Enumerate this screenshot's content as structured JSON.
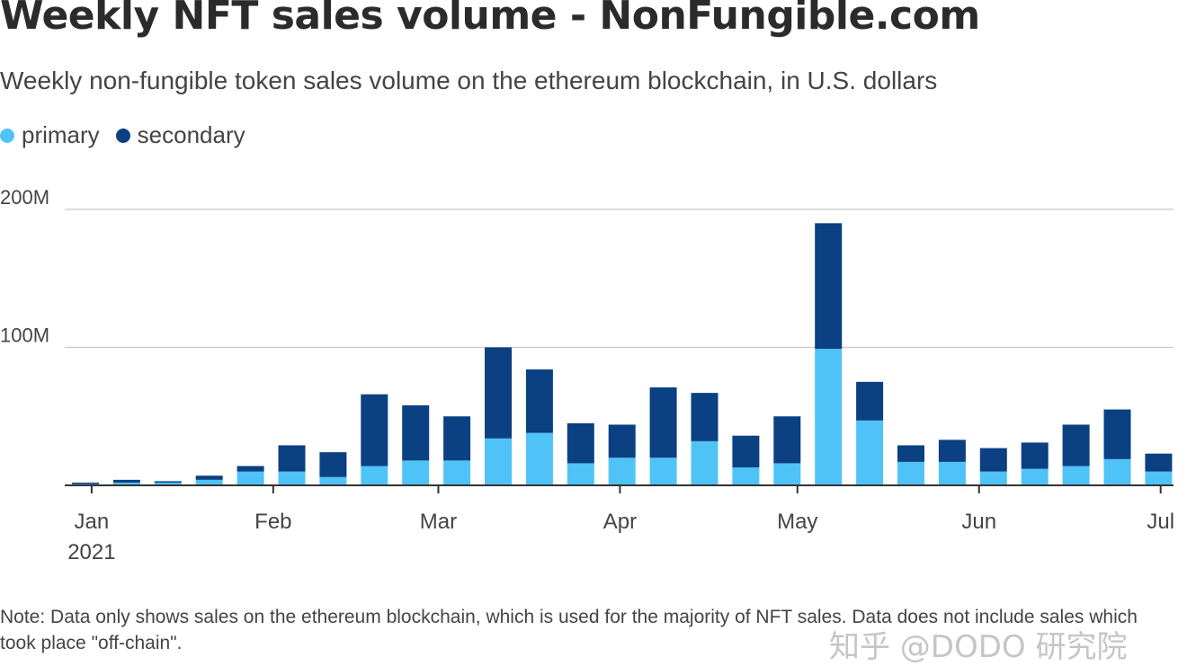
{
  "chart_data": {
    "type": "bar",
    "stacked": true,
    "title": "Weekly NFT sales volume - NonFungible.com",
    "subtitle": "Weekly non-fungible token sales volume on the ethereum blockchain, in U.S. dollars",
    "legend_placement": "top-left",
    "grid": true,
    "ylim": [
      0,
      200
    ],
    "y_ticks": [
      {
        "value": 100,
        "label": "100M"
      },
      {
        "value": 200,
        "label": "200M"
      }
    ],
    "x_ticks": [
      {
        "week": 0.15,
        "label": "Jan",
        "sublabel": "2021"
      },
      {
        "week": 4.55,
        "label": "Feb"
      },
      {
        "week": 8.55,
        "label": "Mar"
      },
      {
        "week": 12.95,
        "label": "Apr"
      },
      {
        "week": 17.25,
        "label": "May"
      },
      {
        "week": 21.65,
        "label": "Jun"
      },
      {
        "week": 26.05,
        "label": "Jul"
      }
    ],
    "series": [
      {
        "name": "primary",
        "color": "#4fc3f7",
        "values": [
          1,
          2,
          2,
          4,
          10,
          10,
          6,
          14,
          18,
          18,
          34,
          38,
          16,
          20,
          20,
          32,
          13,
          16,
          99,
          47,
          17,
          17,
          10,
          12,
          14,
          19,
          10
        ]
      },
      {
        "name": "secondary",
        "color": "#0b4082",
        "values": [
          1,
          2,
          1,
          3,
          4,
          19,
          18,
          52,
          40,
          32,
          66,
          46,
          29,
          24,
          51,
          35,
          23,
          34,
          91,
          28,
          12,
          16,
          17,
          19,
          30,
          36,
          13
        ]
      }
    ],
    "note": "Note: Data only shows sales on the ethereum blockchain, which is used for the majority of NFT sales. Data does not include sales which took place \"off-chain\"."
  },
  "watermark": "知乎 @DODO 研究院"
}
